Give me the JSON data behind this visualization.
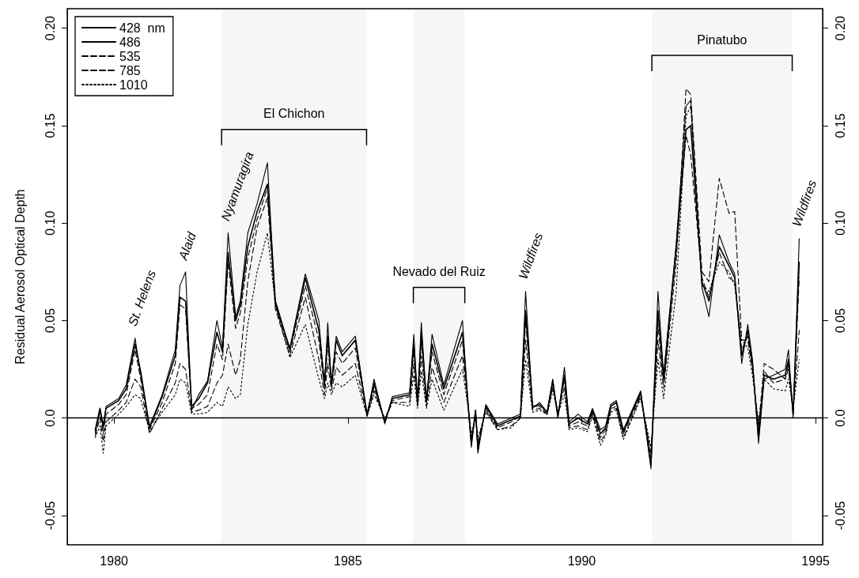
{
  "chart_data": {
    "type": "line",
    "ylabel": "Residual Aerosol Optical Depth",
    "x": [
      1979.6,
      1979.7,
      1979.77,
      1979.83,
      1980.1,
      1980.26,
      1980.45,
      1980.57,
      1980.76,
      1981.03,
      1981.31,
      1981.41,
      1981.53,
      1981.66,
      1981.81,
      1982.0,
      1982.2,
      1982.32,
      1982.44,
      1982.6,
      1982.7,
      1982.86,
      1983.06,
      1983.28,
      1983.45,
      1983.76,
      1984.09,
      1984.38,
      1984.5,
      1984.57,
      1984.65,
      1984.75,
      1984.88,
      1985.16,
      1985.41,
      1985.56,
      1985.79,
      1985.95,
      1986.32,
      1986.41,
      1986.49,
      1986.57,
      1986.68,
      1986.8,
      1987.05,
      1987.45,
      1987.59,
      1987.64,
      1987.73,
      1987.78,
      1987.95,
      1988.2,
      1988.49,
      1988.69,
      1988.8,
      1988.95,
      1989.1,
      1989.26,
      1989.38,
      1989.49,
      1989.63,
      1989.73,
      1989.92,
      1990.12,
      1990.23,
      1990.4,
      1990.51,
      1990.62,
      1990.74,
      1990.89,
      1991.26,
      1991.48,
      1991.63,
      1991.75,
      1992.02,
      1992.23,
      1992.33,
      1992.57,
      1992.72,
      1992.94,
      1993.15,
      1993.27,
      1993.42,
      1993.55,
      1993.65,
      1993.78,
      1993.9,
      1994.1,
      1994.35,
      1994.42,
      1994.52,
      1994.65
    ],
    "series": [
      {
        "name": "428  nm",
        "color": "#000000",
        "line_style": "solid",
        "values": [
          -0.007,
          0.004,
          -0.005,
          0.006,
          0.01,
          0.017,
          0.041,
          0.022,
          -0.004,
          0.012,
          0.035,
          0.068,
          0.075,
          0.004,
          0.012,
          0.019,
          0.05,
          0.036,
          0.095,
          0.052,
          0.06,
          0.095,
          0.11,
          0.131,
          0.058,
          0.036,
          0.074,
          0.05,
          0.016,
          0.049,
          0.016,
          0.042,
          0.034,
          0.042,
          0.001,
          0.02,
          -0.003,
          0.011,
          0.013,
          0.043,
          0.007,
          0.049,
          0.008,
          0.043,
          0.017,
          0.05,
          0.0,
          -0.015,
          0.004,
          -0.018,
          0.007,
          -0.003,
          0.0,
          0.002,
          0.065,
          0.005,
          0.008,
          0.003,
          0.02,
          0.0,
          0.026,
          -0.002,
          0.002,
          -0.002,
          0.005,
          -0.006,
          -0.004,
          0.007,
          0.009,
          -0.006,
          0.014,
          -0.026,
          0.065,
          0.022,
          0.089,
          0.16,
          0.163,
          0.067,
          0.052,
          0.094,
          0.08,
          0.074,
          0.028,
          0.048,
          0.03,
          -0.013,
          0.02,
          0.022,
          0.025,
          0.035,
          0.0,
          0.092
        ]
      },
      {
        "name": "486",
        "color": "#000000",
        "line_style": "solid",
        "values": [
          -0.006,
          0.005,
          -0.004,
          0.005,
          0.009,
          0.015,
          0.038,
          0.024,
          -0.005,
          0.011,
          0.032,
          0.062,
          0.06,
          0.006,
          0.01,
          0.018,
          0.044,
          0.034,
          0.085,
          0.05,
          0.058,
          0.088,
          0.106,
          0.12,
          0.06,
          0.035,
          0.072,
          0.045,
          0.018,
          0.042,
          0.018,
          0.04,
          0.032,
          0.04,
          0.002,
          0.018,
          -0.002,
          0.01,
          0.012,
          0.038,
          0.008,
          0.044,
          0.009,
          0.038,
          0.015,
          0.044,
          0.001,
          -0.013,
          0.004,
          -0.016,
          0.006,
          -0.004,
          -0.001,
          0.001,
          0.055,
          0.006,
          0.007,
          0.003,
          0.019,
          0.001,
          0.022,
          -0.003,
          0.0,
          -0.003,
          0.004,
          -0.008,
          -0.005,
          0.006,
          0.008,
          -0.007,
          0.013,
          -0.024,
          0.055,
          0.02,
          0.088,
          0.148,
          0.15,
          0.07,
          0.06,
          0.088,
          0.078,
          0.072,
          0.032,
          0.045,
          0.028,
          -0.01,
          0.022,
          0.02,
          0.022,
          0.03,
          0.002,
          0.08
        ]
      },
      {
        "name": "535",
        "color": "#000000",
        "line_style": "dashed",
        "values": [
          -0.008,
          0.003,
          -0.008,
          0.002,
          0.007,
          0.012,
          0.035,
          0.02,
          -0.006,
          0.008,
          0.028,
          0.058,
          0.056,
          0.005,
          0.007,
          0.012,
          0.038,
          0.03,
          0.08,
          0.046,
          0.054,
          0.082,
          0.102,
          0.118,
          0.058,
          0.034,
          0.068,
          0.04,
          0.015,
          0.038,
          0.016,
          0.034,
          0.028,
          0.036,
          0.001,
          0.016,
          -0.002,
          0.009,
          0.011,
          0.035,
          0.008,
          0.04,
          0.008,
          0.034,
          0.012,
          0.04,
          0.001,
          -0.012,
          0.003,
          -0.014,
          0.005,
          -0.005,
          -0.002,
          0.001,
          0.05,
          0.006,
          0.006,
          0.002,
          0.018,
          0.002,
          0.02,
          -0.004,
          -0.002,
          -0.004,
          0.003,
          -0.01,
          -0.006,
          0.005,
          0.006,
          -0.008,
          0.012,
          -0.02,
          0.048,
          0.018,
          0.085,
          0.145,
          0.135,
          0.072,
          0.062,
          0.085,
          0.072,
          0.07,
          0.035,
          0.042,
          0.026,
          -0.008,
          0.024,
          0.018,
          0.02,
          0.028,
          0.003,
          0.072
        ]
      },
      {
        "name": "785",
        "color": "#000000",
        "line_style": "dashed",
        "values": [
          -0.009,
          0.0,
          -0.012,
          -0.002,
          0.004,
          0.008,
          0.02,
          0.016,
          -0.008,
          0.005,
          0.018,
          0.028,
          0.025,
          0.003,
          0.004,
          0.006,
          0.018,
          0.022,
          0.038,
          0.022,
          0.03,
          0.07,
          0.098,
          0.113,
          0.056,
          0.032,
          0.062,
          0.03,
          0.012,
          0.028,
          0.014,
          0.026,
          0.022,
          0.028,
          0.001,
          0.014,
          -0.001,
          0.008,
          0.008,
          0.028,
          0.006,
          0.032,
          0.006,
          0.026,
          0.008,
          0.032,
          0.002,
          -0.01,
          0.002,
          -0.012,
          0.004,
          -0.006,
          -0.004,
          0.0,
          0.04,
          0.004,
          0.005,
          0.002,
          0.016,
          0.003,
          0.016,
          -0.005,
          -0.004,
          -0.006,
          0.002,
          -0.012,
          -0.008,
          0.004,
          0.005,
          -0.01,
          0.011,
          -0.018,
          0.04,
          0.015,
          0.08,
          0.169,
          0.166,
          0.075,
          0.07,
          0.123,
          0.105,
          0.106,
          0.04,
          0.04,
          0.025,
          -0.005,
          0.028,
          0.025,
          0.02,
          0.025,
          0.004,
          0.045
        ]
      },
      {
        "name": "1010",
        "color": "#000000",
        "line_style": "dotted",
        "values": [
          -0.01,
          -0.004,
          -0.018,
          -0.004,
          0.002,
          0.006,
          0.012,
          0.01,
          -0.007,
          0.003,
          0.012,
          0.02,
          0.018,
          0.002,
          0.002,
          0.003,
          0.008,
          0.006,
          0.016,
          0.01,
          0.012,
          0.048,
          0.075,
          0.095,
          0.058,
          0.031,
          0.048,
          0.02,
          0.01,
          0.018,
          0.012,
          0.018,
          0.016,
          0.022,
          0.001,
          0.012,
          0.0,
          0.008,
          0.006,
          0.022,
          0.005,
          0.024,
          0.005,
          0.02,
          0.004,
          0.025,
          0.002,
          -0.008,
          0.0,
          -0.01,
          0.003,
          -0.006,
          -0.005,
          0.0,
          0.03,
          0.003,
          0.004,
          0.002,
          0.014,
          0.002,
          0.012,
          -0.006,
          -0.005,
          -0.007,
          0.001,
          -0.014,
          -0.009,
          0.003,
          0.004,
          -0.011,
          0.01,
          -0.015,
          0.03,
          0.01,
          0.065,
          0.155,
          0.16,
          0.068,
          0.065,
          0.08,
          0.075,
          0.068,
          0.04,
          0.036,
          0.022,
          -0.002,
          0.02,
          0.015,
          0.014,
          0.02,
          0.005,
          0.03
        ]
      }
    ],
    "xlim": [
      1979.0,
      1995.15
    ],
    "xticks": [
      1980,
      1985,
      1990,
      1995
    ],
    "ylim": [
      -0.065,
      0.21
    ],
    "yticks": [
      -0.05,
      {
        "value": 0,
        "label": "0.0"
      },
      0.05,
      {
        "value": 0.1,
        "label": "0.10"
      },
      0.15,
      {
        "value": 0.2,
        "label": "0.20"
      }
    ],
    "y2lim": [
      -0.065,
      0.21
    ],
    "y2ticks": [
      -0.05,
      {
        "value": 0,
        "label": "0.0"
      },
      0.05,
      {
        "value": 0.1,
        "label": "0.10"
      },
      0.15,
      {
        "value": 0.2,
        "label": "0.20"
      }
    ],
    "ref_lines": [
      {
        "axis": "y",
        "value": 0,
        "color": "#000000"
      }
    ],
    "bands": [
      {
        "axis": "x",
        "from": 1982.3,
        "to": 1985.4,
        "label": "El Chichon"
      },
      {
        "axis": "x",
        "from": 1986.4,
        "to": 1987.5,
        "label": "Nevado del Ruiz"
      },
      {
        "axis": "x",
        "from": 1991.5,
        "to": 1994.5,
        "label": "Pinatubo"
      }
    ],
    "annotations": [
      {
        "text": "St. Helens",
        "x": 1980.45,
        "y": 0.041
      },
      {
        "text": "Alaid",
        "x": 1981.53,
        "y": 0.075
      },
      {
        "text": "Nyamuragira",
        "x": 1982.44,
        "y": 0.095
      },
      {
        "text": "Wildfires",
        "x": 1988.8,
        "y": 0.065
      },
      {
        "text": "Wildfires",
        "x": 1994.65,
        "y": 0.092
      }
    ],
    "grid": false,
    "legend": "top left",
    "marker": "none"
  }
}
